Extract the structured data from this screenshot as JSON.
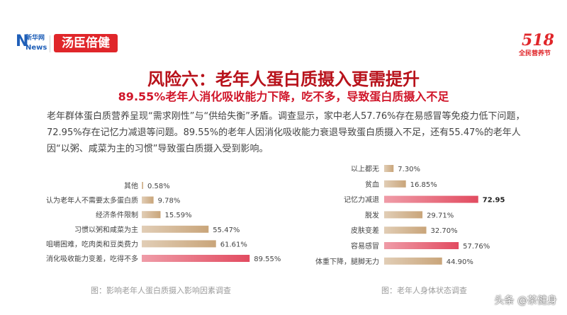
{
  "header": {
    "logo_xinhua_top": "新华网",
    "logo_xinhua_bottom": "News",
    "logo_brand": "汤臣倍健",
    "logo_event_number": "518",
    "logo_event_text": "全民营养节"
  },
  "title": "风险六：老年人蛋白质摄入更需提升",
  "subtitle": "89.55%老年人消化吸收能力下降，吃不多，导致蛋白质摄入不足",
  "paragraph": "老年群体蛋白质营养呈现“需求刚性”与“供给失衡”矛盾。调查显示，家中老人57.76%存在易感冒等免疫力低下问题，72.95%存在记忆力减退等问题。89.55%的老年人因消化吸收能力衰退导致蛋白质摄入不足，还有55.47%的老年人因“以粥、咸菜为主的习惯”导致蛋白质摄入受到影响。",
  "watermark": "头条 @茶健身",
  "colors": {
    "bar_tan": "#c9a57a",
    "bar_pink": "#e24b60",
    "title_red": "#b8121b"
  },
  "chart_data": [
    {
      "type": "bar",
      "orientation": "horizontal",
      "title": "图：影响老年人蛋白质摄入影响因素调查",
      "categories": [
        "其他",
        "认为老年人不需要太多蛋白质",
        "经济条件限制",
        "习惯以粥和咸菜为主",
        "咀嚼困难，吃肉类和豆类费力",
        "消化吸收能力变差，吃得不多"
      ],
      "values": [
        0.58,
        9.78,
        15.59,
        55.47,
        61.61,
        89.55
      ],
      "value_labels": [
        "0.58%",
        "9.78%",
        "15.59%",
        "55.47%",
        "61.61%",
        "89.55%"
      ],
      "highlight_index": 5,
      "xlim": [
        0,
        100
      ]
    },
    {
      "type": "bar",
      "orientation": "horizontal",
      "title": "图：老年人身体状态调查",
      "categories": [
        "以上都无",
        "贫血",
        "记忆力减退",
        "脱发",
        "皮肤变差",
        "容易感冒",
        "体重下降，腿脚无力"
      ],
      "values": [
        7.3,
        16.85,
        72.95,
        29.71,
        32.7,
        57.76,
        44.9
      ],
      "value_labels": [
        "7.30%",
        "16.85%",
        "72.95",
        "29.71%",
        "32.70%",
        "57.76%",
        "44.90%"
      ],
      "highlight_indices": [
        2,
        5
      ],
      "xlim": [
        0,
        100
      ]
    }
  ]
}
